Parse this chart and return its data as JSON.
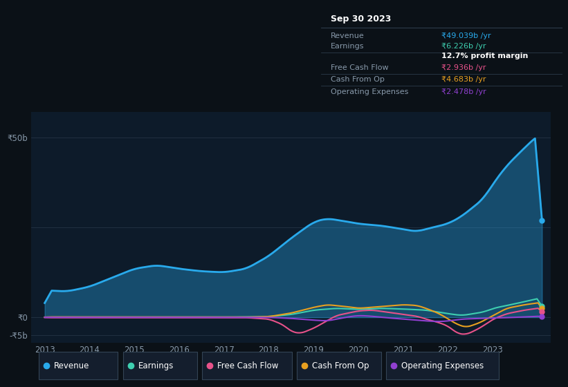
{
  "background_color": "#0b1117",
  "plot_bg_color": "#0d1b2a",
  "ylim": [
    -7.0,
    57
  ],
  "xlim": [
    2012.7,
    2024.3
  ],
  "yticks": [
    -5,
    0,
    50
  ],
  "xtick_labels": [
    "2013",
    "2014",
    "2015",
    "2016",
    "2017",
    "2018",
    "2019",
    "2020",
    "2021",
    "2022",
    "2023"
  ],
  "xtick_positions": [
    2013,
    2014,
    2015,
    2016,
    2017,
    2018,
    2019,
    2020,
    2021,
    2022,
    2023
  ],
  "colors": {
    "revenue": "#29aaec",
    "earnings": "#3ecfb0",
    "free_cash_flow": "#e8528a",
    "cash_from_op": "#e8a020",
    "operating_expenses": "#9040d0"
  },
  "legend": [
    "Revenue",
    "Earnings",
    "Free Cash Flow",
    "Cash From Op",
    "Operating Expenses"
  ],
  "info_box": {
    "title": "Sep 30 2023",
    "rows": [
      {
        "label": "Revenue",
        "value": "₹49.039b /yr",
        "color": "#29aaec"
      },
      {
        "label": "Earnings",
        "value": "₹6.226b /yr",
        "color": "#3ecfb0"
      },
      {
        "label": "",
        "value": "12.7% profit margin",
        "color": "white",
        "bold": true
      },
      {
        "label": "Free Cash Flow",
        "value": "₹2.936b /yr",
        "color": "#e8528a"
      },
      {
        "label": "Cash From Op",
        "value": "₹4.683b /yr",
        "color": "#e8a020"
      },
      {
        "label": "Operating Expenses",
        "value": "₹2.478b /yr",
        "color": "#9040d0"
      }
    ]
  }
}
